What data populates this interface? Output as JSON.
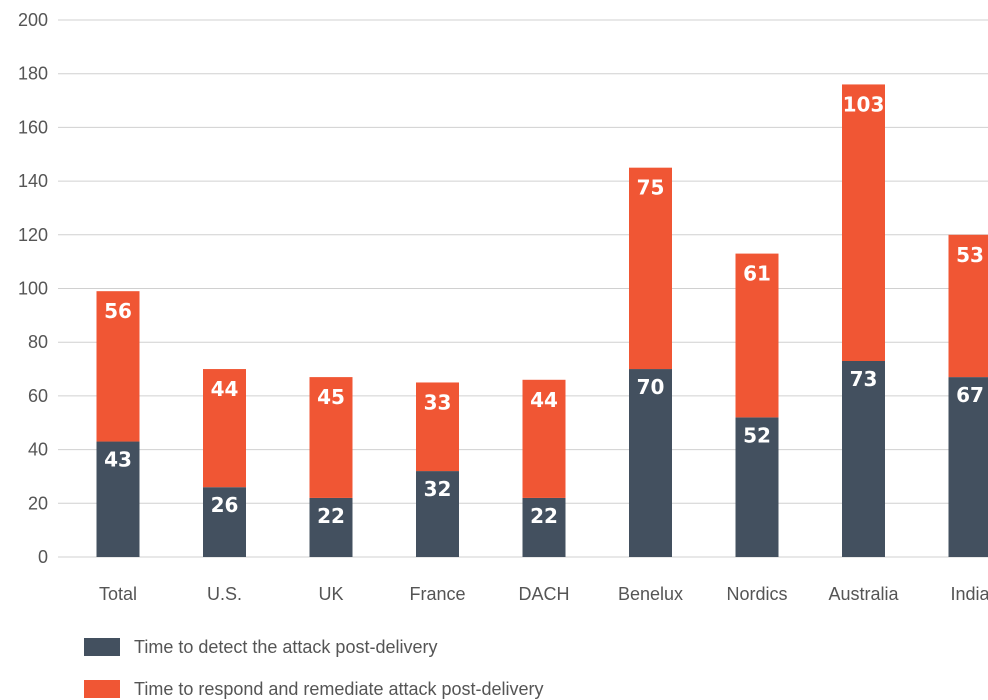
{
  "colors": {
    "detect": "#43505f",
    "respond": "#f05634",
    "grid": "#d0d0d0"
  },
  "chart_data": {
    "type": "bar",
    "stacked": true,
    "categories": [
      "Total",
      "U.S.",
      "UK",
      "France",
      "DACH",
      "Benelux",
      "Nordics",
      "Australia",
      "India"
    ],
    "series": [
      {
        "name": "Time to detect the attack post-delivery",
        "values": [
          43,
          26,
          22,
          32,
          22,
          70,
          52,
          73,
          67
        ]
      },
      {
        "name": "Time to respond and remediate attack post-delivery",
        "values": [
          56,
          44,
          45,
          33,
          44,
          75,
          61,
          103,
          53
        ]
      }
    ],
    "ylim": [
      0,
      200
    ],
    "yticks": [
      0,
      20,
      40,
      60,
      80,
      100,
      120,
      140,
      160,
      180,
      200
    ],
    "grid": true,
    "legend_position": "bottom-left"
  }
}
